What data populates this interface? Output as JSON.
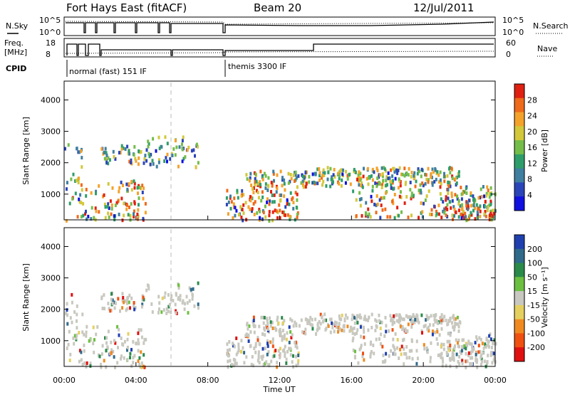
{
  "header": {
    "station": "Fort Hays East (fitACF)",
    "beam": "Beam 20",
    "date": "12/Jul/2011"
  },
  "aux_panels": {
    "nsky_label": "N.Sky",
    "nsky_ticks": [
      "10^5",
      "10^0"
    ],
    "nsearch_ticks": [
      "10^5",
      "10^0"
    ],
    "nsearch_label": "N.Search",
    "freq_label": "Freq.",
    "freq_unit": "[MHz]",
    "freq_ticks": [
      "18",
      "8"
    ],
    "nave_ticks": [
      "60",
      "0"
    ],
    "nave_label": "Nave",
    "cpid_label": "CPID",
    "modes": [
      "normal (fast) 151 IF",
      "themis 3300 IF"
    ]
  },
  "chart_data": [
    {
      "type": "heatmap",
      "name": "power",
      "ylabel": "Slant Range [km]",
      "xlabel": "",
      "ylim": [
        180,
        4600
      ],
      "yticks": [
        "1000",
        "2000",
        "3000",
        "4000"
      ],
      "xlim": [
        0,
        24
      ],
      "colorbar_label": "Power [dB]",
      "colorbar_ticks": [
        "28",
        "24",
        "20",
        "16",
        "12",
        "8",
        "4"
      ],
      "colors": [
        "#1010e0",
        "#2a45b8",
        "#3f7fa0",
        "#2f9d6a",
        "#74bd4a",
        "#d2c83a",
        "#f4a22a",
        "#ef6a1a",
        "#e02010"
      ]
    },
    {
      "type": "heatmap",
      "name": "velocity",
      "ylabel": "Slant Range [km]",
      "xlabel": "Time UT",
      "ylim": [
        180,
        4600
      ],
      "yticks": [
        "1000",
        "2000",
        "3000",
        "4000"
      ],
      "xlim": [
        0,
        24
      ],
      "xticks": [
        "00:00",
        "04:00",
        "08:00",
        "12:00",
        "16:00",
        "20:00",
        "00:00"
      ],
      "colorbar_label": "Velocity [m s⁻¹]",
      "colorbar_ticks": [
        "200",
        "100",
        "50",
        "15",
        "-15",
        "-50",
        "-100",
        "-200"
      ],
      "colors": [
        "#2040b0",
        "#2f6a8a",
        "#2a8a4a",
        "#6cc040",
        "#c8c8c0",
        "#e4d060",
        "#f08a20",
        "#f05010",
        "#e01010"
      ]
    }
  ]
}
